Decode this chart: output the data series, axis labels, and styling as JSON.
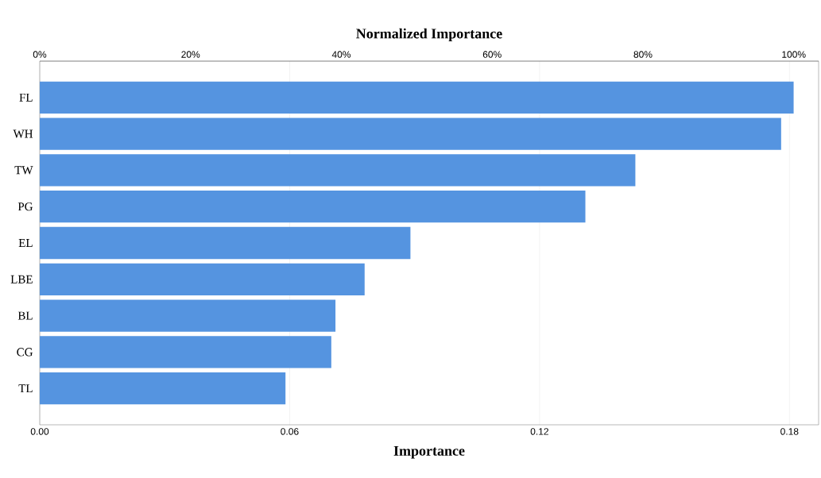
{
  "chart_data": {
    "type": "bar",
    "orientation": "horizontal",
    "title": "Normalized Importance",
    "xlabel": "Importance",
    "categories": [
      "FL",
      "WH",
      "TW",
      "PG",
      "EL",
      "LBE",
      "BL",
      "CG",
      "TL"
    ],
    "values": [
      0.181,
      0.178,
      0.143,
      0.131,
      0.089,
      0.078,
      0.071,
      0.07,
      0.059
    ],
    "color": "#5594e0",
    "xlim": [
      0,
      0.187
    ],
    "xticks": [
      {
        "value": 0,
        "label": "0.00"
      },
      {
        "value": 0.06,
        "label": "0.06"
      },
      {
        "value": 0.12,
        "label": "0.12"
      },
      {
        "value": 0.18,
        "label": "0.18"
      }
    ],
    "x2lim": [
      0,
      103.3
    ],
    "x2ticks": [
      {
        "value": 0,
        "label": "0%"
      },
      {
        "value": 20,
        "label": "20%"
      },
      {
        "value": 40,
        "label": "40%"
      },
      {
        "value": 60,
        "label": "60%"
      },
      {
        "value": 80,
        "label": "80%"
      },
      {
        "value": 100,
        "label": "100%"
      }
    ],
    "grid": "x"
  }
}
